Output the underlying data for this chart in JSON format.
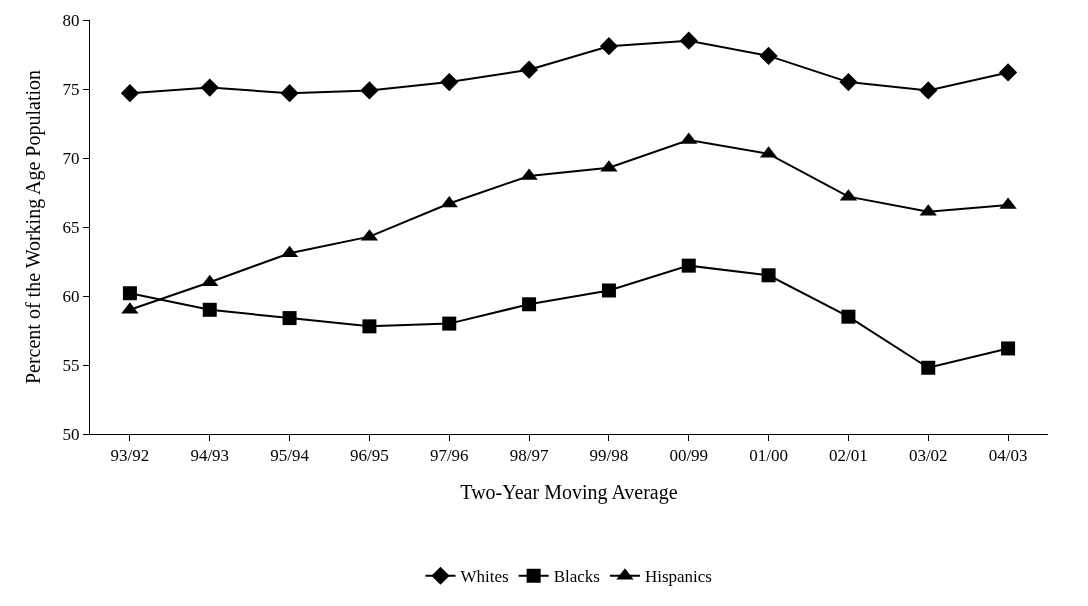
{
  "chart_data": {
    "type": "line",
    "xlabel": "Two-Year Moving Average",
    "ylabel": "Percent of the Working Age Population",
    "categories": [
      "93/92",
      "94/93",
      "95/94",
      "96/95",
      "97/96",
      "98/97",
      "99/98",
      "00/99",
      "01/00",
      "02/01",
      "03/02",
      "04/03"
    ],
    "series": [
      {
        "name": "Whites",
        "color": "#000000",
        "marker": "diamond",
        "values": [
          74.7,
          75.1,
          74.7,
          74.9,
          75.5,
          76.4,
          78.1,
          78.5,
          77.4,
          75.5,
          74.9,
          76.2
        ]
      },
      {
        "name": "Blacks",
        "color": "#000000",
        "marker": "square",
        "values": [
          60.2,
          59.0,
          58.4,
          57.8,
          58.0,
          59.4,
          60.4,
          62.2,
          61.5,
          58.5,
          54.8,
          56.2
        ]
      },
      {
        "name": "Hispanics",
        "color": "#000000",
        "marker": "triangle",
        "values": [
          59.0,
          61.0,
          63.1,
          64.3,
          66.7,
          68.7,
          69.3,
          71.3,
          70.3,
          67.2,
          66.1,
          66.6
        ]
      }
    ],
    "ylim": [
      50,
      80
    ],
    "yticks": [
      50,
      55,
      60,
      65,
      70,
      75,
      80
    ],
    "grid": false,
    "legend": "bottom",
    "line_style": "solid"
  }
}
